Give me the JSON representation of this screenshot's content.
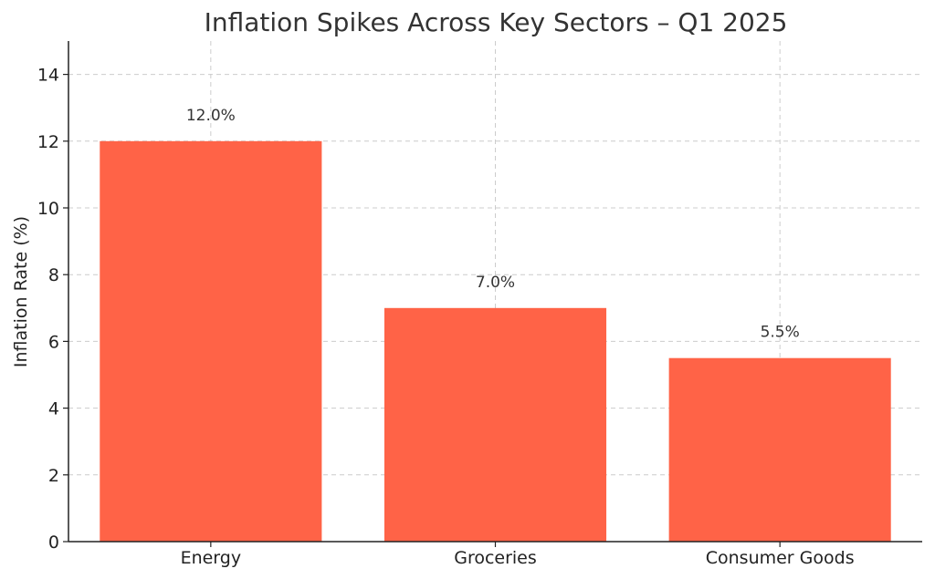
{
  "chart_data": {
    "type": "bar",
    "title": "Inflation Spikes Across Key Sectors – Q1 2025",
    "xlabel": "",
    "ylabel": "Inflation Rate (%)",
    "categories": [
      "Energy",
      "Groceries",
      "Consumer Goods"
    ],
    "values": [
      12.0,
      7.0,
      5.5
    ],
    "value_labels": [
      "12.0%",
      "7.0%",
      "5.5%"
    ],
    "ylim": [
      0,
      15
    ],
    "yticks": [
      0,
      2,
      4,
      6,
      8,
      10,
      12,
      14
    ],
    "grid": true,
    "bar_color": "#ff6347"
  }
}
